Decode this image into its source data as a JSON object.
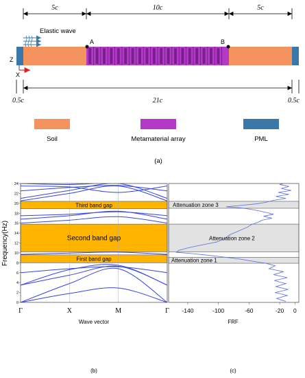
{
  "panel_a": {
    "dim_left": "5c",
    "dim_middle": "10c",
    "dim_right": "5c",
    "dim_total": "21c",
    "dim_pml_left": "0.5c",
    "dim_pml_right": "0.5c",
    "wave_label": "Elastic wave",
    "point_a": "A",
    "point_b": "B",
    "axis_z": "Z",
    "axis_x": "X",
    "caption": "(a)",
    "colors": {
      "soil": "#F4935E",
      "metamaterial": "#B23AC7",
      "pml": "#3A78AA"
    },
    "legend": [
      {
        "label": "Soil",
        "color": "#F4935E"
      },
      {
        "label": "Metamaterial array",
        "color": "#B23AC7"
      },
      {
        "label": "PML",
        "color": "#3A78AA"
      }
    ]
  },
  "panel_b": {
    "ylabel": "Frequency(Hz)",
    "xlabel": "Wave vector",
    "xticks": [
      "Γ",
      "X",
      "M",
      "Γ"
    ],
    "yticks": [
      "0",
      "2",
      "4",
      "6",
      "8",
      "10",
      "12",
      "14",
      "16",
      "18",
      "20",
      "22",
      "24"
    ],
    "band_gaps": [
      {
        "label": "First band gap",
        "from": 8.0,
        "to": 9.6
      },
      {
        "label": "Second band gap",
        "from": 10.2,
        "to": 15.8
      },
      {
        "label": "Third band gap",
        "from": 18.9,
        "to": 20.4
      }
    ],
    "gap_color": "#FFB400",
    "line_color": "#3344DD",
    "caption": "(b)"
  },
  "panel_c": {
    "xlabel": "FRF",
    "xticks": [
      "-140",
      "-100",
      "-60",
      "-20",
      "0"
    ],
    "zones": [
      {
        "label": "Attenuation zone 1",
        "from": 7.9,
        "to": 9.1
      },
      {
        "label": "Attenuation zone 2",
        "from": 10.2,
        "to": 15.8
      },
      {
        "label": "Attenuation zone 3",
        "from": 19.0,
        "to": 20.4
      }
    ],
    "zone_color": "#E2E2E2",
    "caption": "(c)"
  },
  "chart_data": [
    {
      "type": "line",
      "xticks": [
        "Γ",
        "X",
        "M",
        "Γ"
      ],
      "xlabel": "Wave vector",
      "ylabel": "Frequency(Hz)",
      "ylim": [
        0,
        24
      ],
      "series": [
        {
          "values": [
            0,
            1.8,
            2.9,
            0
          ]
        },
        {
          "values": [
            0,
            3.8,
            6.8,
            0
          ]
        },
        {
          "values": [
            3.5,
            5.5,
            7.3,
            3.5
          ]
        },
        {
          "values": [
            3.5,
            6.6,
            7.5,
            3.5
          ]
        },
        {
          "values": [
            6.0,
            6.8,
            7.2,
            6.0
          ]
        },
        {
          "values": [
            9.7,
            9.95,
            10.15,
            9.7
          ]
        },
        {
          "values": [
            16.0,
            16.6,
            17.3,
            16.0
          ]
        },
        {
          "values": [
            16.8,
            17.5,
            18.4,
            16.8
          ]
        },
        {
          "values": [
            17.5,
            17.8,
            18.3,
            17.5
          ]
        },
        {
          "values": [
            20.5,
            22.0,
            23.5,
            20.5
          ]
        },
        {
          "values": [
            21.0,
            22.6,
            24.0,
            21.0
          ]
        },
        {
          "values": [
            22.5,
            23.2,
            23.6,
            22.5
          ]
        },
        {
          "values": [
            23.5,
            23.3,
            22.2,
            23.5
          ]
        },
        {
          "values": [
            24.0,
            23.8,
            24.2,
            24.0
          ]
        }
      ]
    },
    {
      "type": "line",
      "xlabel": "FRF",
      "xlim": [
        -165,
        5
      ],
      "ylim": [
        0,
        24
      ],
      "series": [
        {
          "points": [
            [
              -12,
              0.2
            ],
            [
              -24,
              0.8
            ],
            [
              -10,
              1.4
            ],
            [
              -26,
              2.0
            ],
            [
              -9,
              2.6
            ],
            [
              -25,
              3.2
            ],
            [
              -12,
              3.8
            ],
            [
              -27,
              4.4
            ],
            [
              -10,
              5.0
            ],
            [
              -28,
              5.6
            ],
            [
              -15,
              6.2
            ],
            [
              -34,
              6.8
            ],
            [
              -26,
              7.4
            ],
            [
              -38,
              7.9
            ],
            [
              -55,
              8.3
            ],
            [
              -70,
              8.7
            ],
            [
              -85,
              9.0
            ],
            [
              -100,
              9.3
            ],
            [
              -118,
              9.6
            ],
            [
              -138,
              9.9
            ],
            [
              -155,
              10.1
            ],
            [
              -152,
              10.5
            ],
            [
              -140,
              11.0
            ],
            [
              -125,
              11.5
            ],
            [
              -112,
              11.9
            ],
            [
              -102,
              12.2
            ],
            [
              -96,
              12.6
            ],
            [
              -90,
              13.1
            ],
            [
              -86,
              13.6
            ],
            [
              -80,
              14.0
            ],
            [
              -74,
              14.4
            ],
            [
              -68,
              14.8
            ],
            [
              -62,
              15.2
            ],
            [
              -57,
              15.7
            ],
            [
              -48,
              16.2
            ],
            [
              -43,
              16.6
            ],
            [
              -30,
              17.0
            ],
            [
              -41,
              17.4
            ],
            [
              -28,
              17.8
            ],
            [
              -36,
              18.1
            ],
            [
              -48,
              18.5
            ],
            [
              -58,
              18.8
            ],
            [
              -72,
              19.1
            ],
            [
              -90,
              19.3
            ],
            [
              -70,
              19.6
            ],
            [
              -50,
              19.9
            ],
            [
              -38,
              20.2
            ],
            [
              -28,
              20.6
            ],
            [
              -12,
              21.0
            ],
            [
              -25,
              21.4
            ],
            [
              -8,
              21.8
            ],
            [
              -22,
              22.2
            ],
            [
              -5,
              22.6
            ],
            [
              -18,
              23.0
            ],
            [
              -8,
              23.4
            ],
            [
              -20,
              23.8
            ],
            [
              -10,
              24.2
            ]
          ]
        }
      ]
    }
  ]
}
